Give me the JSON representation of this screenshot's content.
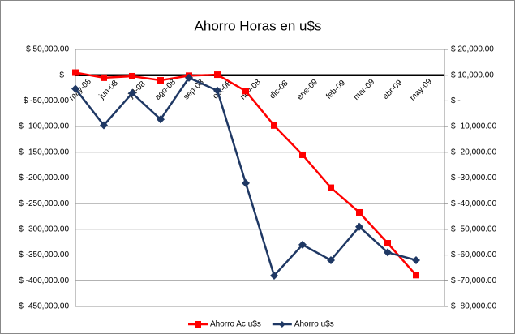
{
  "chart_data": {
    "type": "line",
    "title": "Ahorro Horas en u$s",
    "categories": [
      "may-08",
      "jun-08",
      "jul-08",
      "ago-08",
      "sep-08",
      "oct-08",
      "nov-08",
      "dic-08",
      "ene-09",
      "feb-09",
      "mar-09",
      "abr-09",
      "may-09"
    ],
    "series": [
      {
        "name": "Ahorro Ac u$s",
        "color": "#ff0000",
        "marker": "square",
        "values": [
          5000,
          -5000,
          -2000,
          -10000,
          -1000,
          1000,
          -31000,
          -98000,
          -155000,
          -219000,
          -267000,
          -327000,
          -389000
        ]
      },
      {
        "name": "Ahorro u$s",
        "color": "#1f3864",
        "marker": "diamond",
        "axis": "y2",
        "values": [
          4700,
          -9500,
          3000,
          -7200,
          9000,
          4000,
          -32000,
          -68000,
          -56000,
          -62000,
          -49000,
          -59000,
          -62000
        ]
      }
    ],
    "ylim": [
      -450000,
      50000
    ],
    "yticks": [
      {
        "value": 50000,
        "label": "$ 50,000.00"
      },
      {
        "value": 0,
        "label": "$ -"
      },
      {
        "value": -50000,
        "label": "$ -50,000.00"
      },
      {
        "value": -100000,
        "label": "$ -100,000.00"
      },
      {
        "value": -150000,
        "label": "$ -150,000.00"
      },
      {
        "value": -200000,
        "label": "$ -200,000.00"
      },
      {
        "value": -250000,
        "label": "$ -250,000.00"
      },
      {
        "value": -300000,
        "label": "$ -300,000.00"
      },
      {
        "value": -350000,
        "label": "$ -350,000.00"
      },
      {
        "value": -400000,
        "label": "$ -400,000.00"
      },
      {
        "value": -450000,
        "label": "$ -450,000.00"
      }
    ],
    "y2lim": [
      -80000,
      20000
    ],
    "y2ticks": [
      {
        "value": 20000,
        "label": "$ 20,000.00"
      },
      {
        "value": 10000,
        "label": "$ 10,000.00"
      },
      {
        "value": 0,
        "label": "$ -"
      },
      {
        "value": -10000,
        "label": "$ -10,000.00"
      },
      {
        "value": -20000,
        "label": "$ -20,000.00"
      },
      {
        "value": -30000,
        "label": "$ -30,000.00"
      },
      {
        "value": -40000,
        "label": "$ -40,000.00"
      },
      {
        "value": -50000,
        "label": "$ -50,000.00"
      },
      {
        "value": -60000,
        "label": "$ -60,000.00"
      },
      {
        "value": -70000,
        "label": "$ -70,000.00"
      },
      {
        "value": -80000,
        "label": "$ -80,000.00"
      }
    ],
    "grid": true,
    "legend": "bottom"
  }
}
